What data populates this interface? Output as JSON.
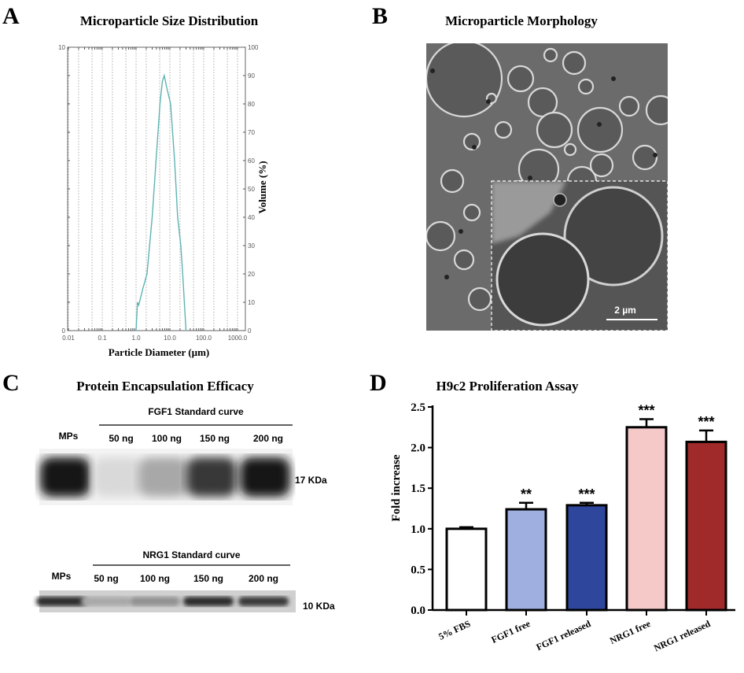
{
  "panels": {
    "a": {
      "letter": "A",
      "title": "Microparticle Size Distribution"
    },
    "b": {
      "letter": "B",
      "title": "Microparticle Morphology",
      "scale_bar": "2 µm"
    },
    "c": {
      "letter": "C",
      "title": "Protein Encapsulation Efficacy",
      "blots": [
        {
          "header": "FGF1 Standard curve",
          "lanes": [
            "MPs",
            "50 ng",
            "100 ng",
            "150 ng",
            "200 ng"
          ],
          "marker": "17 KDa",
          "band_intensity": [
            0.95,
            0.08,
            0.3,
            0.8,
            0.95
          ]
        },
        {
          "header": "NRG1 Standard curve",
          "lanes": [
            "MPs",
            "50 ng",
            "100 ng",
            "150 ng",
            "200 ng"
          ],
          "marker": "10 KDa",
          "band_intensity": [
            0.85,
            0.3,
            0.4,
            0.85,
            0.8
          ]
        }
      ]
    },
    "d": {
      "letter": "D",
      "title": "H9c2 Proliferation Assay"
    }
  },
  "chart_data": [
    {
      "panel": "A",
      "type": "line",
      "title": "Microparticle Size Distribution",
      "xlabel": "Particle Diameter (µm)",
      "ylabel_right": "Volume (%)",
      "x_scale": "log",
      "xlim": [
        0.01,
        3000
      ],
      "x_ticks": [
        "0.01",
        "0.1",
        "1.0",
        "10.0",
        "100.0",
        "1000.0"
      ],
      "left_ticks": [
        "10",
        "0"
      ],
      "right_ticks": [
        "100",
        "90",
        "80",
        "70",
        "60",
        "50",
        "40",
        "30",
        "20",
        "10",
        "0"
      ],
      "ylim": [
        0,
        100
      ],
      "grid": "vertical dotted",
      "color": "#5fb3b3",
      "x": [
        1.0,
        1.1,
        1.2,
        1.6,
        2.1,
        3.0,
        3.9,
        5.1,
        6.0,
        6.8,
        8.0,
        10.5,
        13.8,
        17,
        21,
        24,
        30
      ],
      "y": [
        0,
        10,
        9,
        15,
        20,
        40,
        60,
        80,
        88,
        90,
        86,
        80,
        60,
        40,
        30,
        20,
        0
      ]
    },
    {
      "panel": "D",
      "type": "bar",
      "title": "H9c2 Proliferation Assay",
      "ylabel": "Fold increase",
      "ylim": [
        0,
        2.5
      ],
      "y_ticks": [
        "0.0",
        "0.5",
        "1.0",
        "1.5",
        "2.0",
        "2.5"
      ],
      "categories": [
        "5% FBS",
        "FGF1 free",
        "FGF1 released",
        "NRG1 free",
        "NRG1 released"
      ],
      "values": [
        1.0,
        1.24,
        1.29,
        2.25,
        2.07
      ],
      "errors": [
        0.02,
        0.08,
        0.03,
        0.1,
        0.14
      ],
      "significance": [
        "",
        "**",
        "***",
        "***",
        "***"
      ],
      "colors": [
        "#ffffff",
        "#9fb0e0",
        "#2e479c",
        "#f6c9c9",
        "#a0292a"
      ]
    }
  ]
}
